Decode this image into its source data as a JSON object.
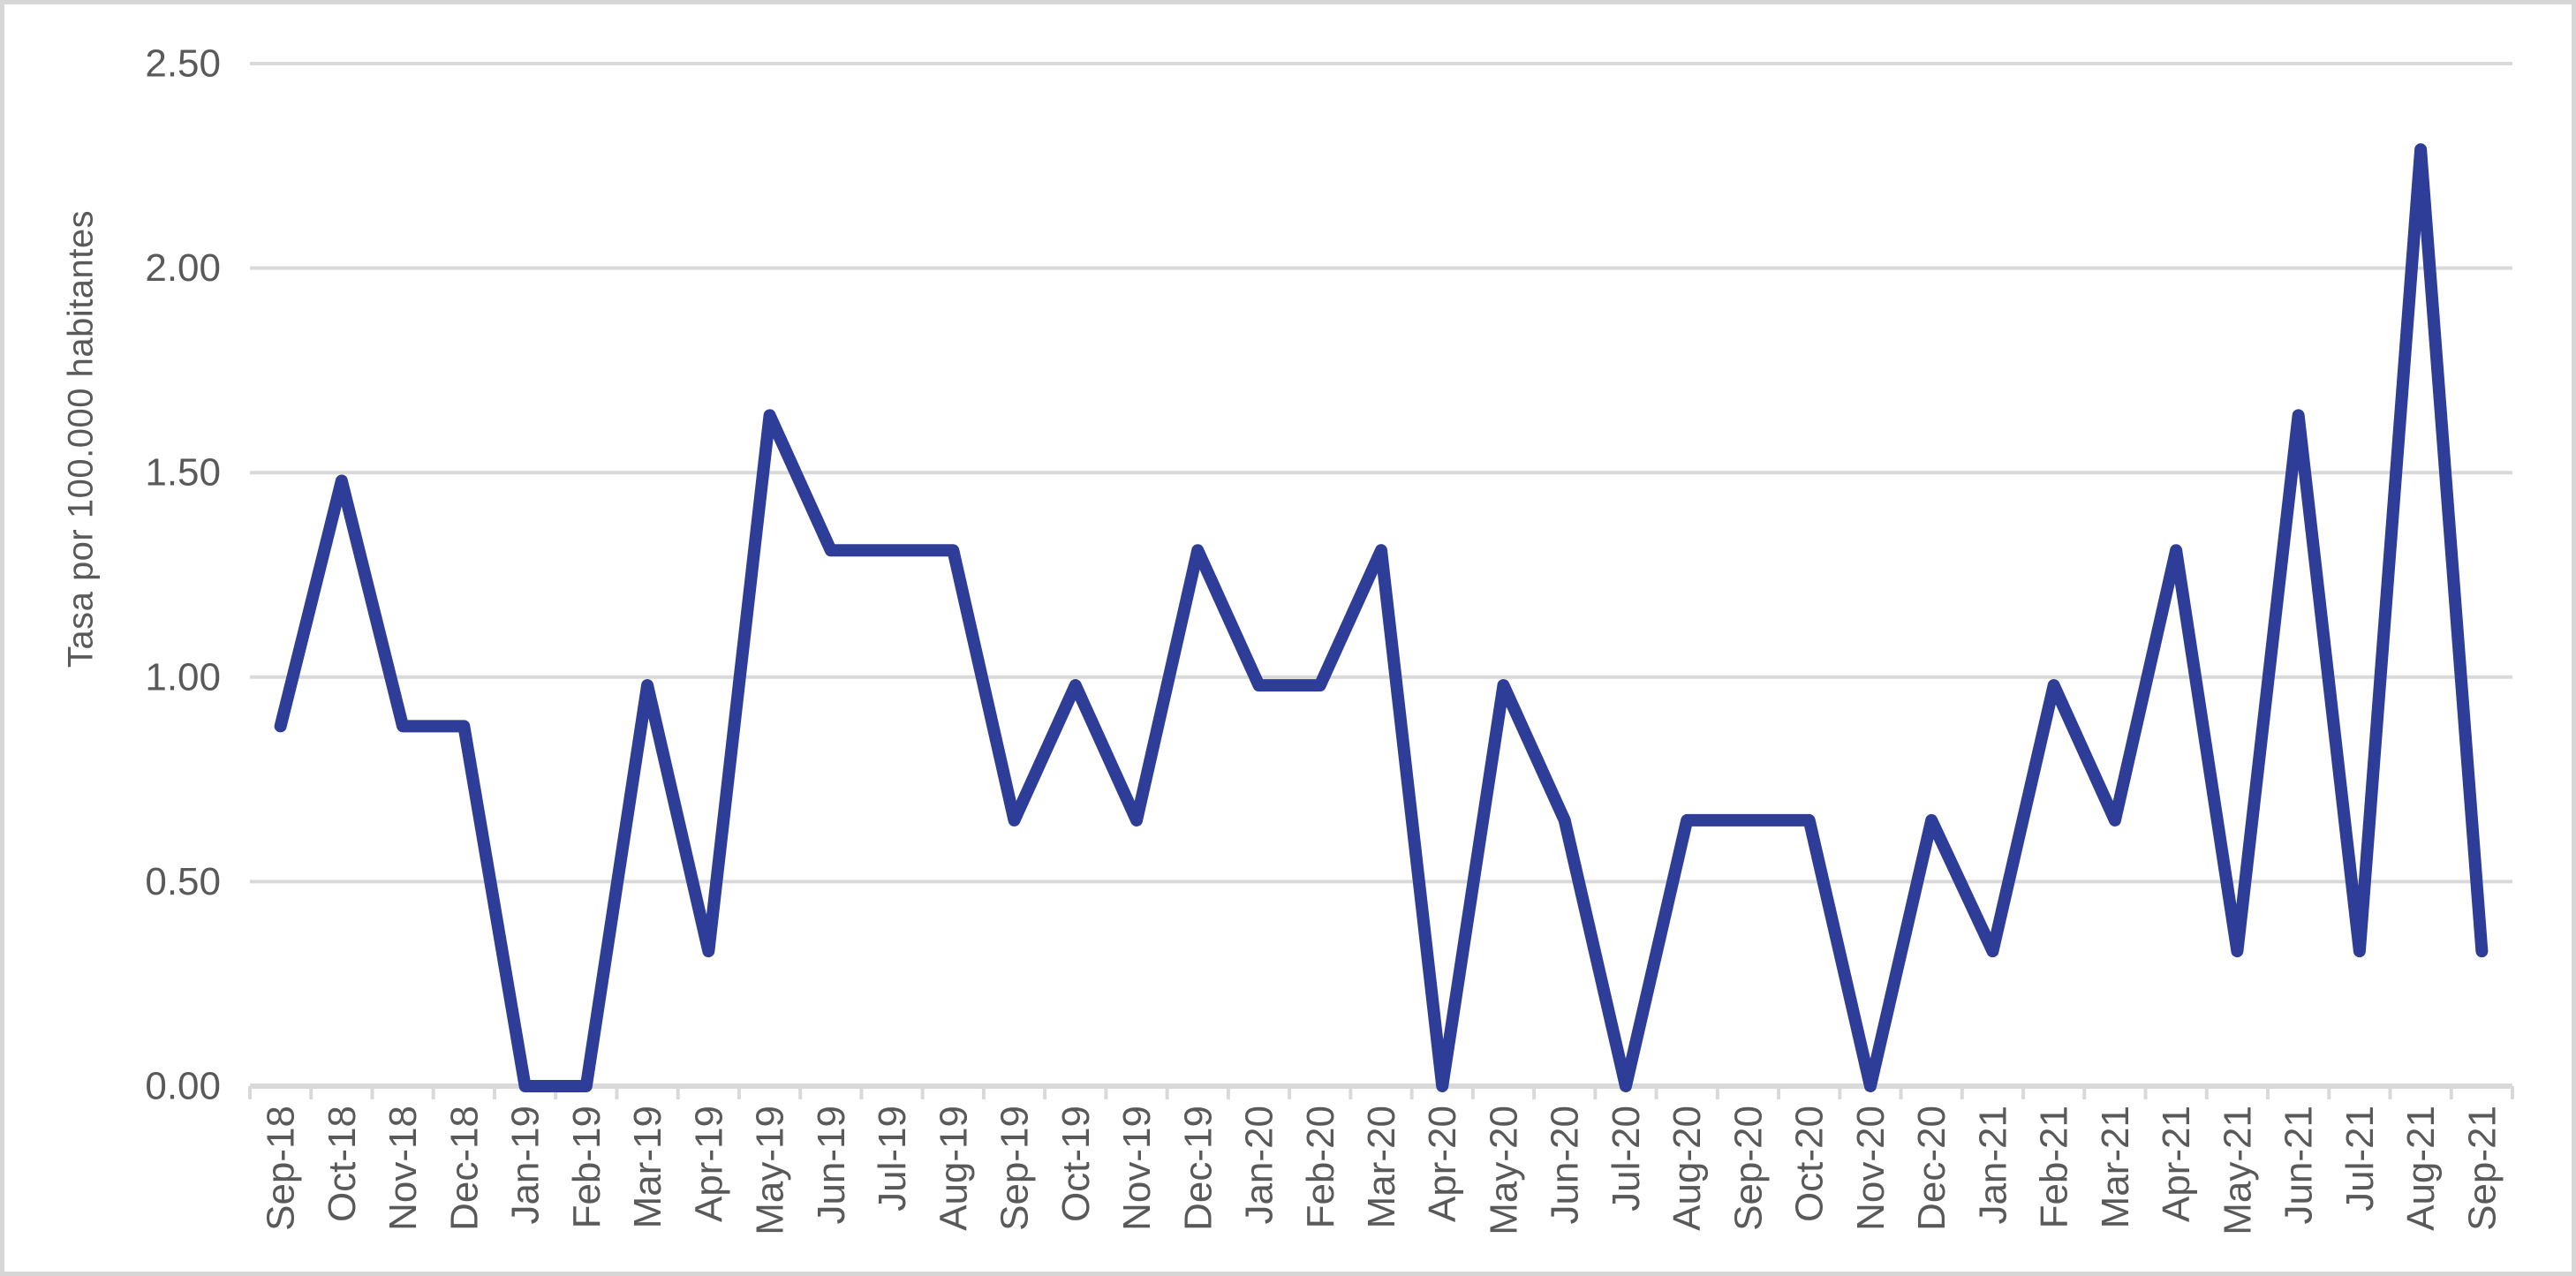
{
  "chart_data": {
    "type": "line",
    "title": "",
    "xlabel": "",
    "ylabel": "Tasa por 100.000 habitantes",
    "ylim": [
      0,
      2.5
    ],
    "y_ticks": [
      {
        "value": 0.0,
        "label": "0.00"
      },
      {
        "value": 0.5,
        "label": "0.50"
      },
      {
        "value": 1.0,
        "label": "1.00"
      },
      {
        "value": 1.5,
        "label": "1.50"
      },
      {
        "value": 2.0,
        "label": "2.00"
      },
      {
        "value": 2.5,
        "label": "2.50"
      }
    ],
    "grid": "horizontal-only",
    "legend_position": "none",
    "categories": [
      "Sep-18",
      "Oct-18",
      "Nov-18",
      "Dec-18",
      "Jan-19",
      "Feb-19",
      "Mar-19",
      "Apr-19",
      "May-19",
      "Jun-19",
      "Jul-19",
      "Aug-19",
      "Sep-19",
      "Oct-19",
      "Nov-19",
      "Dec-19",
      "Jan-20",
      "Feb-20",
      "Mar-20",
      "Apr-20",
      "May-20",
      "Jun-20",
      "Jul-20",
      "Aug-20",
      "Sep-20",
      "Oct-20",
      "Nov-20",
      "Dec-20",
      "Jan-21",
      "Feb-21",
      "Mar-21",
      "Apr-21",
      "May-21",
      "Jun-21",
      "Jul-21",
      "Aug-21",
      "Sep-21"
    ],
    "series": [
      {
        "name": "Tasa por 100.000 habitantes",
        "values": [
          0.88,
          1.48,
          0.88,
          0.88,
          0.0,
          0.0,
          0.98,
          0.33,
          1.64,
          1.31,
          1.31,
          1.31,
          0.65,
          0.98,
          0.65,
          1.31,
          0.98,
          0.98,
          1.31,
          0.0,
          0.98,
          0.65,
          0.0,
          0.65,
          0.65,
          0.65,
          0.0,
          0.65,
          0.33,
          0.98,
          0.65,
          1.31,
          0.33,
          1.64,
          0.33,
          2.29,
          0.33
        ]
      }
    ],
    "colors": {
      "line": "#2E3D98",
      "gridline": "#D9D9D9",
      "axis": "#D9D9D9",
      "tick": "#D9D9D9",
      "label_text": "#595959",
      "frame_border": "#D6D6D6",
      "background": "#FFFFFF"
    }
  }
}
